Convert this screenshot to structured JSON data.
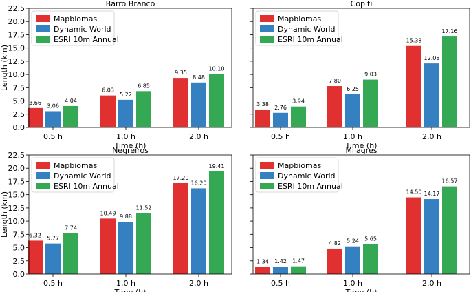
{
  "figure": {
    "ylabel": "Length (km)",
    "xlabel": "Time (h)"
  },
  "colors": {
    "Mapbiomas": "#e03030",
    "Dynamic World": "#3480c0",
    "ESRI 10m Annual": "#35a853"
  },
  "chart_data": [
    {
      "type": "bar",
      "title": "Barro Branco",
      "categories": [
        "0.5 h",
        "1.0 h",
        "2.0 h"
      ],
      "series": [
        {
          "name": "Mapbiomas",
          "values": [
            3.66,
            6.03,
            9.35
          ],
          "labels": [
            "3.66",
            "6.03",
            "9.35"
          ]
        },
        {
          "name": "Dynamic World",
          "values": [
            3.06,
            5.22,
            8.48
          ],
          "labels": [
            "3.06",
            "5.22",
            "8.48"
          ]
        },
        {
          "name": "ESRI 10m Annual",
          "values": [
            4.04,
            6.85,
            10.1
          ],
          "labels": [
            "4.04",
            "6.85",
            "10.10"
          ]
        }
      ],
      "xlabel": "Time (h)",
      "ylabel": "Length (km)",
      "ylim": [
        0,
        22.5
      ],
      "yticks": [
        "0.0",
        "2.5",
        "5.0",
        "7.5",
        "10.0",
        "12.5",
        "15.0",
        "17.5",
        "20.0",
        "22.5"
      ],
      "show_ytick_labels": true,
      "legend": "top-left"
    },
    {
      "type": "bar",
      "title": "Copiti",
      "categories": [
        "0.5 h",
        "1.0 h",
        "2.0 h"
      ],
      "series": [
        {
          "name": "Mapbiomas",
          "values": [
            3.38,
            7.8,
            15.38
          ],
          "labels": [
            "3.38",
            "7.80",
            "15.38"
          ]
        },
        {
          "name": "Dynamic World",
          "values": [
            2.76,
            6.25,
            12.08
          ],
          "labels": [
            "2.76",
            "6.25",
            "12.08"
          ]
        },
        {
          "name": "ESRI 10m Annual",
          "values": [
            3.94,
            9.03,
            17.16
          ],
          "labels": [
            "3.94",
            "9.03",
            "17.16"
          ]
        }
      ],
      "xlabel": "Time (h)",
      "ylabel": "",
      "ylim": [
        0,
        22.5
      ],
      "yticks": [],
      "show_ytick_labels": false,
      "legend": "top-left"
    },
    {
      "type": "bar",
      "title": "Negreiros",
      "categories": [
        "0.5 h",
        "1.0 h",
        "2.0 h"
      ],
      "series": [
        {
          "name": "Mapbiomas",
          "values": [
            6.32,
            10.49,
            17.2
          ],
          "labels": [
            "6.32",
            "10.49",
            "17.20"
          ]
        },
        {
          "name": "Dynamic World",
          "values": [
            5.77,
            9.88,
            16.2
          ],
          "labels": [
            "5.77",
            "9.88",
            "16.20"
          ]
        },
        {
          "name": "ESRI 10m Annual",
          "values": [
            7.74,
            11.52,
            19.41
          ],
          "labels": [
            "7.74",
            "11.52",
            "19.41"
          ]
        }
      ],
      "xlabel": "Time (h)",
      "ylabel": "Length (km)",
      "ylim": [
        0,
        22.5
      ],
      "yticks": [
        "0.0",
        "2.5",
        "5.0",
        "7.5",
        "10.0",
        "12.5",
        "15.0",
        "17.5",
        "20.0",
        "22.5"
      ],
      "show_ytick_labels": true,
      "legend": "top-left"
    },
    {
      "type": "bar",
      "title": "Milagres",
      "categories": [
        "0.5 h",
        "1.0 h",
        "2.0 h"
      ],
      "series": [
        {
          "name": "Mapbiomas",
          "values": [
            1.34,
            4.82,
            14.5
          ],
          "labels": [
            "1.34",
            "4.82",
            "14.50"
          ]
        },
        {
          "name": "Dynamic World",
          "values": [
            1.42,
            5.24,
            14.17
          ],
          "labels": [
            "1.42",
            "5.24",
            "14.17"
          ]
        },
        {
          "name": "ESRI 10m Annual",
          "values": [
            1.47,
            5.65,
            16.57
          ],
          "labels": [
            "1.47",
            "5.65",
            "16.57"
          ]
        }
      ],
      "xlabel": "Time (h)",
      "ylabel": "",
      "ylim": [
        0,
        22.5
      ],
      "yticks": [],
      "show_ytick_labels": false,
      "legend": "top-left"
    }
  ]
}
